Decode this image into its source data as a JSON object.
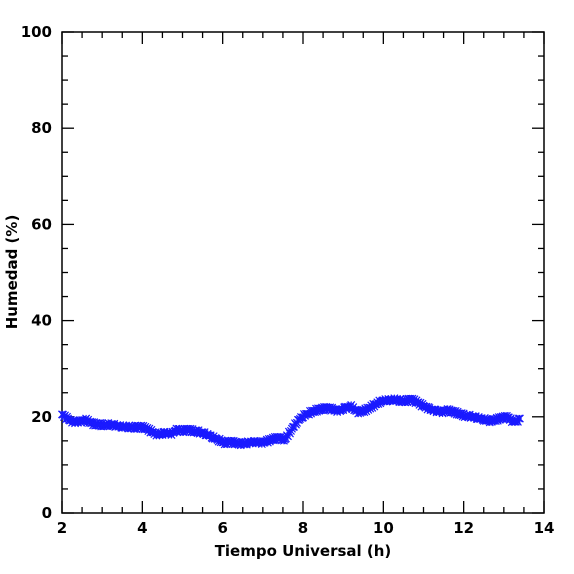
{
  "chart_data": {
    "type": "scatter",
    "title": "",
    "xlabel": "Tiempo Universal (h)",
    "ylabel": "Humedad (%)",
    "xlim": [
      2,
      14
    ],
    "ylim": [
      0,
      100
    ],
    "x_ticks": [
      2,
      4,
      6,
      8,
      10,
      12,
      14
    ],
    "y_ticks": [
      0,
      20,
      40,
      60,
      80,
      100
    ],
    "grid": false,
    "legend": "none",
    "marker": "x-star",
    "color": "#1a1aff",
    "series": [
      {
        "x": [
          2.0,
          2.15,
          2.3,
          2.45,
          2.6,
          2.75,
          2.9,
          3.05,
          3.2,
          3.35,
          3.5,
          3.65,
          3.8,
          3.95,
          4.1,
          4.25,
          4.4,
          4.55,
          4.7,
          4.85,
          5.0,
          5.15,
          5.3,
          5.45,
          5.6,
          5.75,
          5.9,
          6.05,
          6.2,
          6.35,
          6.5,
          6.65,
          6.8,
          6.95,
          7.1,
          7.25,
          7.4,
          7.55,
          7.7,
          7.85,
          8.0,
          8.15,
          8.3,
          8.45,
          8.6,
          8.75,
          8.9,
          9.05,
          9.2,
          9.35,
          9.5,
          9.65,
          9.8,
          9.95,
          10.1,
          10.25,
          10.4,
          10.55,
          10.7,
          10.85,
          11.0,
          11.15,
          11.3,
          11.45,
          11.6,
          11.75,
          11.9,
          12.05,
          12.2,
          12.35,
          12.5,
          12.65,
          12.8,
          12.95,
          13.1,
          13.25,
          13.4
        ],
        "y": [
          20.5,
          19.5,
          18.8,
          19.0,
          19.3,
          18.6,
          18.4,
          18.3,
          18.4,
          18.2,
          18.0,
          17.9,
          17.8,
          17.9,
          17.6,
          16.8,
          16.2,
          16.6,
          16.4,
          17.2,
          17.1,
          17.3,
          17.0,
          16.8,
          16.4,
          15.8,
          15.2,
          14.6,
          14.8,
          14.5,
          14.4,
          14.6,
          14.7,
          14.6,
          14.9,
          15.4,
          15.6,
          15.3,
          17.2,
          19.0,
          20.2,
          20.8,
          21.3,
          21.6,
          21.8,
          21.5,
          21.2,
          21.8,
          22.1,
          21.0,
          21.2,
          21.8,
          22.6,
          23.3,
          23.5,
          23.6,
          23.4,
          23.3,
          23.6,
          23.0,
          22.2,
          21.6,
          21.2,
          21.0,
          21.3,
          21.0,
          20.6,
          20.2,
          20.1,
          19.8,
          19.5,
          19.2,
          19.4,
          19.8,
          19.9,
          18.9,
          19.4
        ]
      }
    ]
  }
}
